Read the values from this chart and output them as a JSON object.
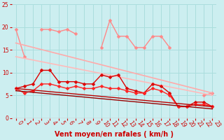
{
  "x": [
    0,
    1,
    2,
    3,
    4,
    5,
    6,
    7,
    8,
    9,
    10,
    11,
    12,
    13,
    14,
    15,
    16,
    17,
    18,
    19,
    20,
    21,
    22,
    23
  ],
  "series": [
    {
      "y": [
        19.5,
        13.5,
        null,
        19.5,
        19.5,
        19.0,
        19.5,
        18.5,
        null,
        null,
        15.5,
        21.5,
        18.0,
        18.0,
        15.5,
        15.5,
        18.0,
        18.0,
        15.5,
        null,
        null,
        null,
        5.0,
        5.5
      ],
      "color": "#ff8888",
      "lw": 1.0,
      "marker": "D",
      "ms": 2.5
    },
    {
      "y": [
        16.5,
        null,
        null,
        null,
        null,
        null,
        null,
        null,
        null,
        null,
        null,
        null,
        null,
        null,
        null,
        null,
        null,
        null,
        null,
        null,
        null,
        null,
        null,
        5.5
      ],
      "color": "#ffaaaa",
      "lw": 1.2,
      "marker": null,
      "ms": 0,
      "trend": true,
      "y_start": 16.5,
      "y_end": 5.5
    },
    {
      "y": [
        13.5,
        null,
        null,
        null,
        null,
        null,
        null,
        null,
        null,
        null,
        null,
        null,
        null,
        null,
        null,
        null,
        null,
        null,
        null,
        null,
        null,
        null,
        null,
        5.0
      ],
      "color": "#ffbbbb",
      "lw": 1.2,
      "marker": null,
      "ms": 0,
      "trend": true,
      "y_start": 13.5,
      "y_end": 5.0
    },
    {
      "y": [
        6.5,
        7.0,
        7.5,
        10.5,
        10.5,
        8.0,
        8.0,
        8.0,
        7.5,
        7.5,
        9.5,
        9.0,
        9.5,
        6.5,
        6.0,
        5.5,
        7.5,
        7.0,
        5.5,
        2.5,
        2.5,
        3.5,
        3.5,
        2.5
      ],
      "color": "#dd0000",
      "lw": 1.0,
      "marker": "D",
      "ms": 2.5,
      "trend": false
    },
    {
      "y": [
        6.5,
        5.5,
        6.0,
        7.5,
        7.5,
        7.0,
        6.5,
        7.0,
        6.5,
        6.5,
        7.0,
        6.5,
        6.5,
        6.0,
        5.5,
        5.5,
        6.5,
        6.0,
        5.0,
        2.5,
        2.5,
        3.0,
        3.0,
        2.5
      ],
      "color": "#ff2222",
      "lw": 1.0,
      "marker": "D",
      "ms": 2.5,
      "trend": false
    },
    {
      "y": [
        6.5,
        null,
        null,
        null,
        null,
        null,
        null,
        null,
        null,
        null,
        null,
        null,
        null,
        null,
        null,
        null,
        null,
        null,
        null,
        null,
        null,
        null,
        null,
        2.5
      ],
      "color": "#bb0000",
      "lw": 1.0,
      "marker": null,
      "ms": 0,
      "trend": true,
      "y_start": 6.5,
      "y_end": 2.5
    },
    {
      "y": [
        6.0,
        null,
        null,
        null,
        null,
        null,
        null,
        null,
        null,
        null,
        null,
        null,
        null,
        null,
        null,
        null,
        null,
        null,
        null,
        null,
        null,
        null,
        null,
        2.0
      ],
      "color": "#990000",
      "lw": 1.0,
      "marker": null,
      "ms": 0,
      "trend": true,
      "y_start": 6.0,
      "y_end": 2.0
    }
  ],
  "xlabel": "Vent moyen/en rafales ( km/h )",
  "xlim": [
    -0.5,
    23.5
  ],
  "ylim": [
    0,
    25
  ],
  "yticks": [
    0,
    5,
    10,
    15,
    20,
    25
  ],
  "xticks": [
    0,
    1,
    2,
    3,
    4,
    5,
    6,
    7,
    8,
    9,
    10,
    11,
    12,
    13,
    14,
    15,
    16,
    17,
    18,
    19,
    20,
    21,
    22,
    23
  ],
  "bg_color": "#cceef0",
  "grid_color": "#aadddd",
  "tick_label_color": "#cc0000",
  "xlabel_color": "#cc0000",
  "tick_fontsize": 5.5,
  "xlabel_fontsize": 7.0
}
